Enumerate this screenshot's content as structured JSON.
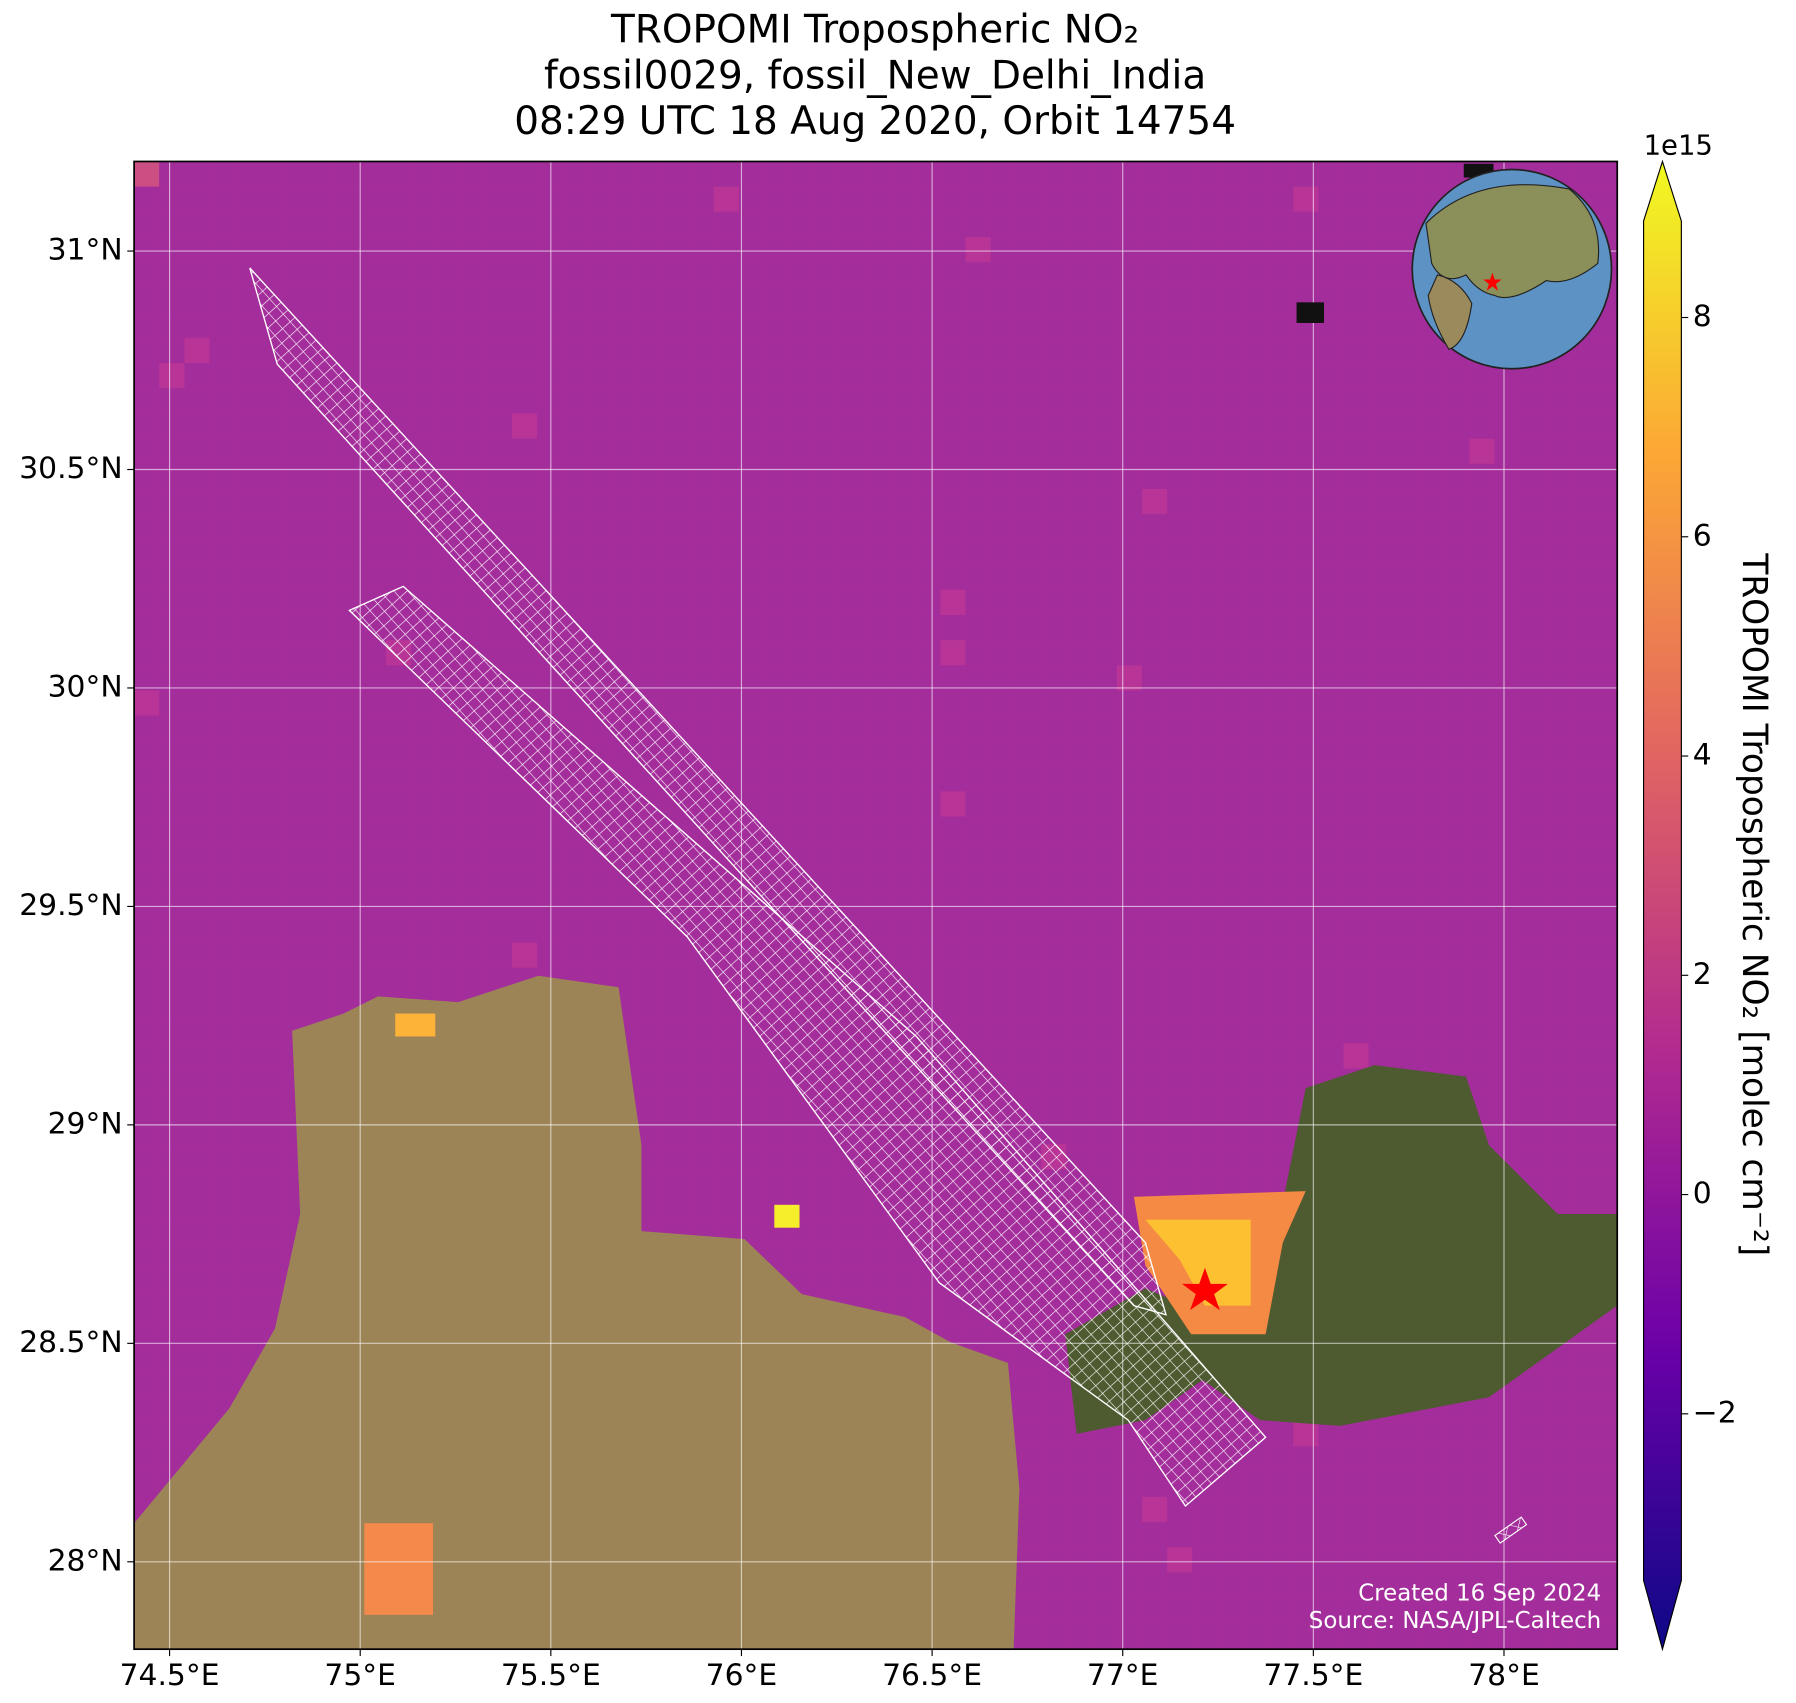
{
  "title_lines": [
    "TROPOMI Tropospheric NO₂",
    "fossil0029, fossil_New_Delhi_India",
    "08:29 UTC 18 Aug 2020, Orbit 14754"
  ],
  "map": {
    "xlim": [
      74.407,
      78.297
    ],
    "ylim": [
      27.8,
      31.205
    ],
    "xticks": [
      {
        "value": 74.5,
        "label": "74.5°E"
      },
      {
        "value": 75,
        "label": "75°E"
      },
      {
        "value": 75.5,
        "label": "75.5°E"
      },
      {
        "value": 76,
        "label": "76°E"
      },
      {
        "value": 76.5,
        "label": "76.5°E"
      },
      {
        "value": 77,
        "label": "77°E"
      },
      {
        "value": 77.5,
        "label": "77.5°E"
      },
      {
        "value": 78,
        "label": "78°E"
      }
    ],
    "yticks": [
      {
        "value": 31,
        "label": "31°N"
      },
      {
        "value": 30.5,
        "label": "30.5°N"
      },
      {
        "value": 30,
        "label": "30°N"
      },
      {
        "value": 29.5,
        "label": "29.5°N"
      },
      {
        "value": 29,
        "label": "29°N"
      },
      {
        "value": 28.5,
        "label": "28.5°N"
      },
      {
        "value": 28,
        "label": "28°N"
      }
    ],
    "grid": true,
    "credits": [
      "Created 16 Sep 2024",
      "Source: NASA/JPL-Caltech"
    ]
  },
  "colorbar": {
    "label": "TROPOMI Tropospheric NO₂ [molec cm⁻²]",
    "exponent": "1e15",
    "lim": [
      -3.52,
      8.88
    ],
    "ticks": [
      8,
      6,
      4,
      2,
      0,
      {
        "value": -2,
        "label": "−2"
      }
    ],
    "colormap": [
      "#0d0887",
      "#6a00a8",
      "#b12a90",
      "#e16462",
      "#fca636",
      "#f0f921"
    ]
  }
}
